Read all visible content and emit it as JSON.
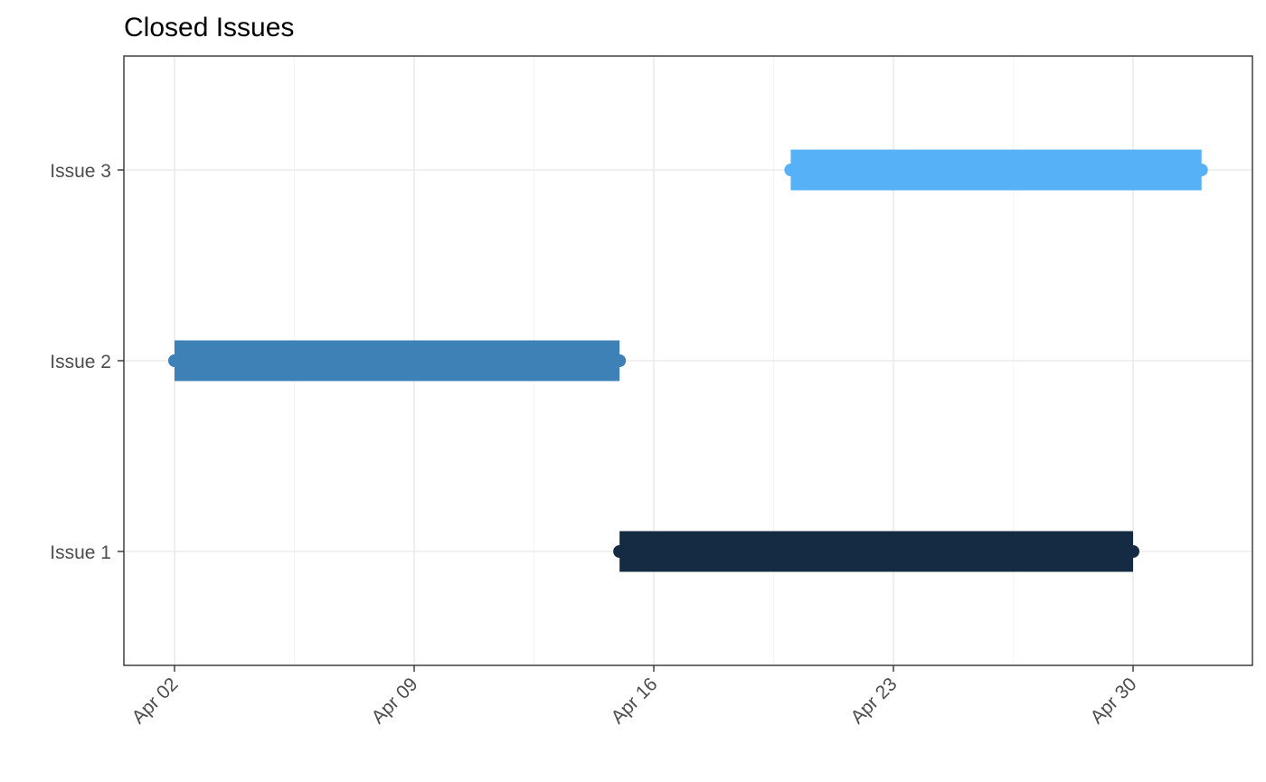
{
  "chart_data": {
    "type": "gantt",
    "title": "Closed Issues",
    "xlabel": "",
    "ylabel": "",
    "x_axis": {
      "type": "date",
      "range": [
        "2023-03-31",
        "2023-05-05"
      ],
      "ticks": [
        {
          "date": "2023-04-02",
          "label": "Apr 02"
        },
        {
          "date": "2023-04-09",
          "label": "Apr 09"
        },
        {
          "date": "2023-04-16",
          "label": "Apr 16"
        },
        {
          "date": "2023-04-23",
          "label": "Apr 23"
        },
        {
          "date": "2023-04-30",
          "label": "Apr 30"
        }
      ],
      "tick_label_rotation_deg": -45
    },
    "categories": [
      "Issue 1",
      "Issue 2",
      "Issue 3"
    ],
    "series": [
      {
        "category": "Issue 1",
        "start": "2023-04-15",
        "end": "2023-04-30",
        "color": "#152b43"
      },
      {
        "category": "Issue 2",
        "start": "2023-04-02",
        "end": "2023-04-15",
        "color": "#3d81b7"
      },
      {
        "category": "Issue 3",
        "start": "2023-04-20",
        "end": "2023-05-02",
        "color": "#56b1f7"
      }
    ],
    "grid": true,
    "legend": "none"
  }
}
